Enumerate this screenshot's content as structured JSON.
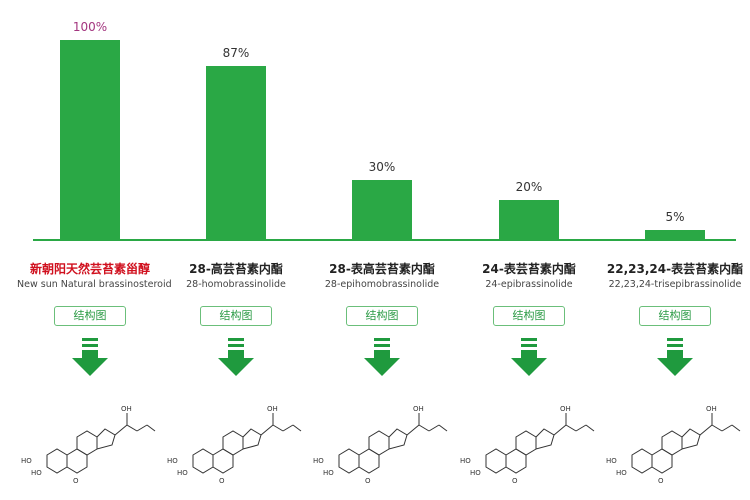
{
  "chart_data": {
    "type": "bar",
    "categories": [
      "新朝阳天然芸苔素甾醇",
      "28-高芸苔素内酯",
      "28-表高芸苔素内酯",
      "24-表芸苔素内酯",
      "22,23,24-表芸苔素内酯"
    ],
    "categories_en": [
      "New sun Natural brassinosteroid",
      "28-homobrassinolide",
      "28-epihomobrassinolide",
      "24-epibrassinolide",
      "22,23,24-trisepibrassinolide"
    ],
    "values": [
      100,
      87,
      30,
      20,
      5
    ],
    "data_labels": [
      "100%",
      "87%",
      "30%",
      "20%",
      "5%"
    ],
    "ylim": [
      0,
      100
    ],
    "grid": false,
    "bar_color": "#2aa845",
    "highlight_label_color": "#a3357f",
    "highlight_name_color": "#d0101e"
  },
  "button_label": "结构图"
}
